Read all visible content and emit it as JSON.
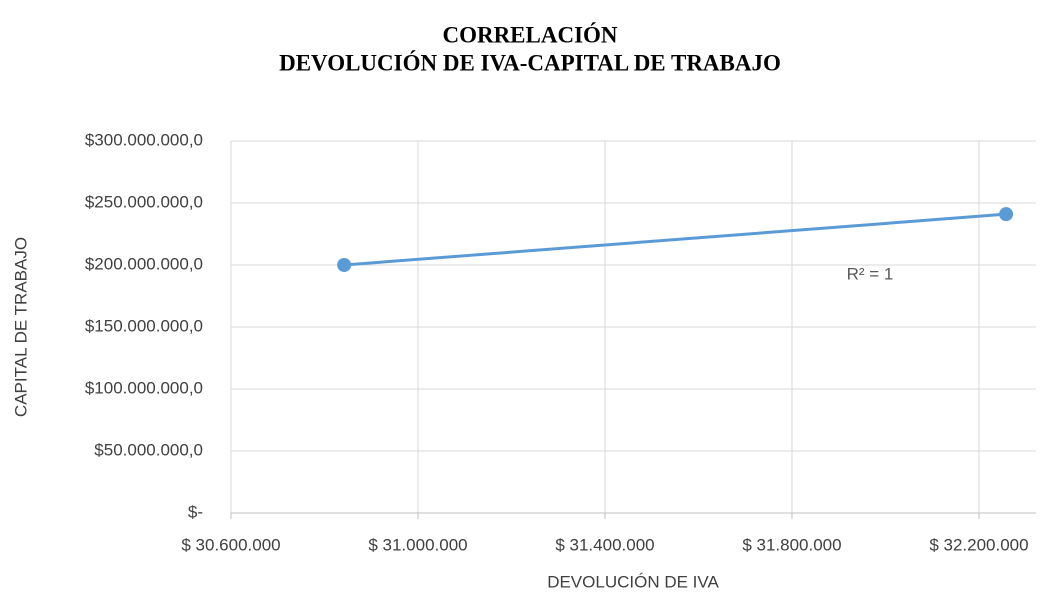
{
  "chart_data": {
    "type": "scatter",
    "title": [
      "CORRELACIÓN",
      "DEVOLUCIÓN DE IVA-CAPITAL DE TRABAJO"
    ],
    "x_label": "DEVOLUCIÓN DE IVA",
    "y_label": "CAPITAL DE TRABAJO",
    "annotation": "R² = 1",
    "series": [
      {
        "color": "#5b9bd5",
        "x": [
          30842000,
          32258000
        ],
        "values": [
          200000000,
          241000000
        ]
      }
    ],
    "xlim": [
      30600000,
      32322000
    ],
    "xticks": [
      {
        "value": 30600000,
        "label": "$ 30.600.000"
      },
      {
        "value": 31000000,
        "label": "$ 31.000.000"
      },
      {
        "value": 31400000,
        "label": "$ 31.400.000"
      },
      {
        "value": 31800000,
        "label": "$ 31.800.000"
      },
      {
        "value": 32200000,
        "label": "$ 32.200.000"
      }
    ],
    "ylim": [
      0,
      300000000
    ],
    "yticks": [
      {
        "value": 0,
        "label": "$-"
      },
      {
        "value": 50000000,
        "label": "$50.000.000,0"
      },
      {
        "value": 100000000,
        "label": "$100.000.000,0"
      },
      {
        "value": 150000000,
        "label": "$150.000.000,0"
      },
      {
        "value": 200000000,
        "label": "$200.000.000,0"
      },
      {
        "value": 250000000,
        "label": "$250.000.000,0"
      },
      {
        "value": 300000000,
        "label": "$300.000.000,0"
      }
    ],
    "grid": true
  }
}
